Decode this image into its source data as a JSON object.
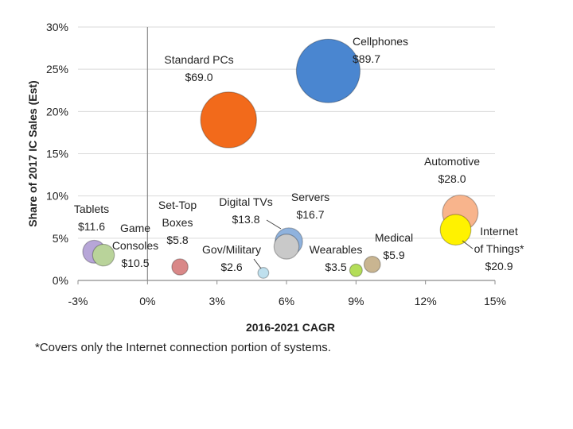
{
  "chart_data": {
    "type": "bubble",
    "xlabel": "2016-2021 CAGR",
    "ylabel": "Share of 2017 IC Sales (Est)",
    "xlim": [
      -3,
      15
    ],
    "ylim": [
      0,
      30
    ],
    "x_ticks": [
      "-3%",
      "0%",
      "3%",
      "6%",
      "9%",
      "12%",
      "15%"
    ],
    "y_ticks": [
      "0%",
      "5%",
      "10%",
      "15%",
      "20%",
      "25%",
      "30%"
    ],
    "grid": "horizontal",
    "footnote": "*Covers only the Internet connection portion of systems.",
    "series": [
      {
        "label": [
          "Cellphones",
          "$89.7"
        ],
        "x": 7.8,
        "y": 24.8,
        "size": 89.7,
        "color": "#4a86d0"
      },
      {
        "label": [
          "Standard PCs",
          "$69.0"
        ],
        "x": 3.5,
        "y": 19.0,
        "size": 69.0,
        "color": "#f26a1b"
      },
      {
        "label": [
          "Automotive",
          "$28.0"
        ],
        "x": 13.5,
        "y": 8.0,
        "size": 28.0,
        "color": "#f8b48c"
      },
      {
        "label": [
          "Internet",
          "of Things*",
          "$20.9"
        ],
        "x": 13.3,
        "y": 6.0,
        "size": 20.9,
        "color": "#fff200"
      },
      {
        "label": [
          "Servers",
          "$16.7"
        ],
        "x": 6.1,
        "y": 4.6,
        "size": 16.7,
        "color": "#8fb2dd"
      },
      {
        "label": [
          "Digital TVs",
          "$13.8"
        ],
        "x": 6.0,
        "y": 4.0,
        "size": 13.8,
        "color": "#c9c9c9"
      },
      {
        "label": [
          "Tablets",
          "$11.6"
        ],
        "x": -2.3,
        "y": 3.4,
        "size": 11.6,
        "color": "#b7a6d8"
      },
      {
        "label": [
          "Game",
          "Consoles",
          "$10.5"
        ],
        "x": -1.9,
        "y": 3.0,
        "size": 10.5,
        "color": "#b9d39a"
      },
      {
        "label": [
          "Set-Top",
          "Boxes",
          "$5.8"
        ],
        "x": 1.4,
        "y": 1.6,
        "size": 5.8,
        "color": "#d98888"
      },
      {
        "label": [
          "Medical",
          "$5.9"
        ],
        "x": 9.7,
        "y": 1.9,
        "size": 5.9,
        "color": "#c9b591"
      },
      {
        "label": [
          "Wearables",
          "$3.5"
        ],
        "x": 9.0,
        "y": 1.2,
        "size": 3.5,
        "color": "#b3dd58"
      },
      {
        "label": [
          "Gov/Military",
          "$2.6"
        ],
        "x": 5.0,
        "y": 0.9,
        "size": 2.6,
        "color": "#bfe0ee"
      }
    ]
  }
}
